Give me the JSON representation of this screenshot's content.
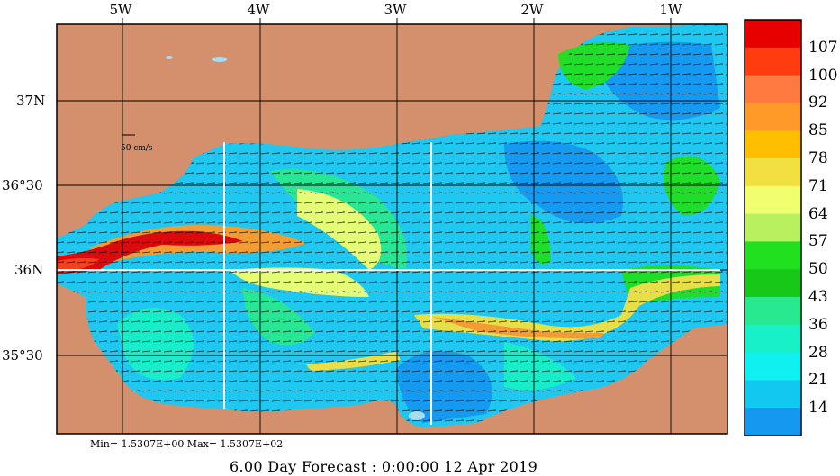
{
  "longitude_labels": [
    "5W",
    "4W",
    "3W",
    "2W",
    "1W"
  ],
  "latitude_labels": [
    "37N",
    "36°30",
    "36N",
    "35°30"
  ],
  "velocity_scale_label": "50 cm/s",
  "colorbar": {
    "values": [
      "107",
      "100",
      "92",
      "85",
      "78",
      "71",
      "64",
      "57",
      "50",
      "43",
      "36",
      "28",
      "21",
      "14"
    ],
    "colors": [
      "#e60000",
      "#ff3b10",
      "#ff7a40",
      "#ff9a2a",
      "#ffbe00",
      "#f2e040",
      "#f0ff70",
      "#b8f060",
      "#20e020",
      "#18c818",
      "#28e890",
      "#18f0c8",
      "#10f0f0",
      "#10c8f0",
      "#1498f0"
    ]
  },
  "min_max_text": "Min= 1.5307E+00   Max= 1.5307E+02",
  "forecast_text": "6.00 Day Forecast :  0:00:00  12 Apr 2019",
  "palette": {
    "land": "#d4906c",
    "ocean_low": "#1e9ef0",
    "ocean_mid": "#14f0f0",
    "jet": "#e00000",
    "grid": "#000000",
    "section": "#ffffff"
  }
}
